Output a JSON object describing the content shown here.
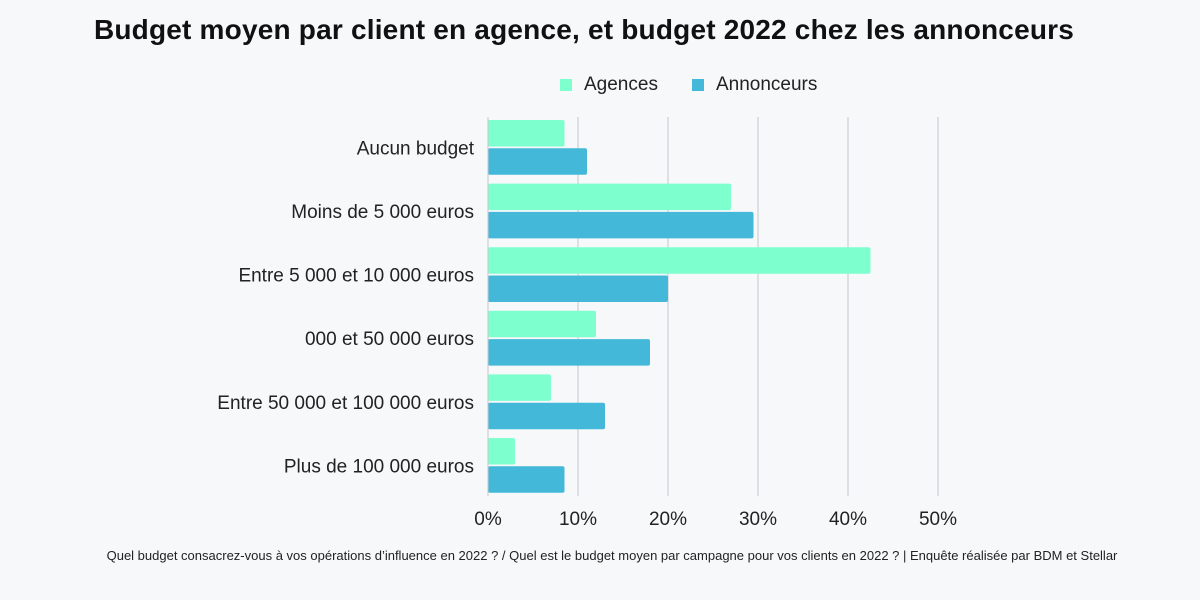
{
  "chart_data": {
    "type": "bar",
    "orientation": "horizontal",
    "title": "Budget moyen par client en agence, et budget 2022 chez les annonceurs",
    "categories": [
      "Aucun budget",
      "Moins de 5 000 euros",
      "Entre 5 000 et 10 000 euros",
      "000 et 50 000 euros",
      "Entre 50 000 et 100 000 euros",
      "Plus de 100 000 euros"
    ],
    "series": [
      {
        "name": "Agences",
        "color": "#7dffce",
        "values": [
          8.5,
          27,
          42.5,
          12,
          7,
          3
        ]
      },
      {
        "name": "Annonceurs",
        "color": "#44b8d8",
        "values": [
          11,
          29.5,
          20,
          18,
          13,
          8.5
        ]
      }
    ],
    "xlim": [
      0,
      50
    ],
    "xticks": [
      "0%",
      "10%",
      "20%",
      "30%",
      "40%",
      "50%"
    ],
    "grid": true,
    "legend_position": "top-right"
  },
  "caption": "Quel budget consacrez-vous à vos opérations d’influence en 2022 ? / Quel est le budget moyen par campagne pour vos clients en 2022 ?  | Enquête réalisée par BDM et Stellar"
}
